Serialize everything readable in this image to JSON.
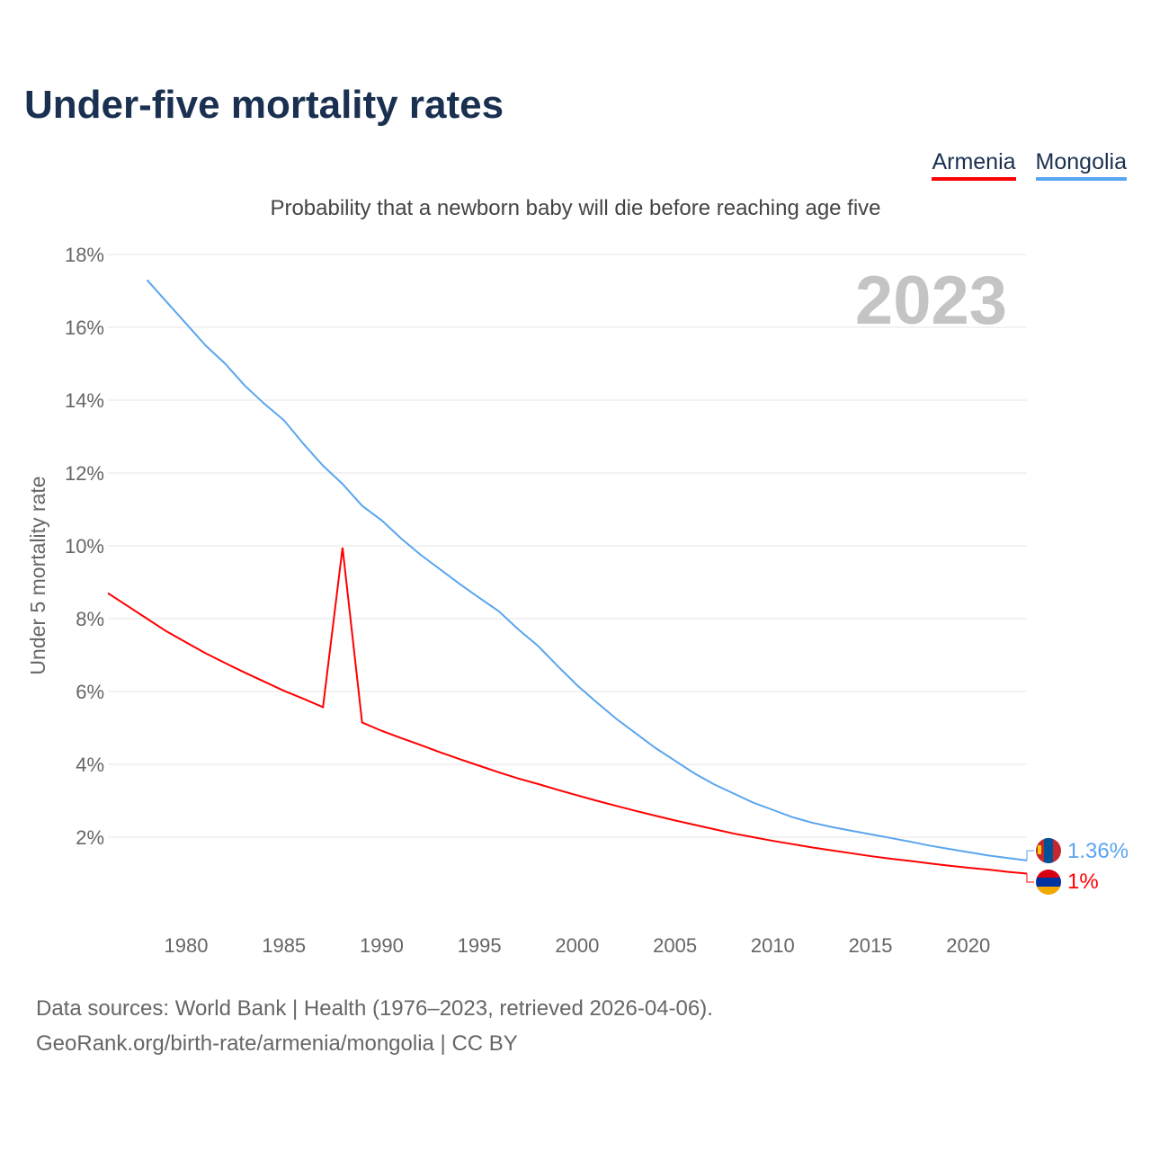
{
  "title": "Under-five mortality rates",
  "legend": [
    {
      "name": "Armenia",
      "color": "#ff0000"
    },
    {
      "name": "Mongolia",
      "color": "#5aa5ef"
    }
  ],
  "subtitle": "Probability that a newborn baby will die before reaching age five",
  "year_label": "2023",
  "end_labels": {
    "Mongolia": "1.36%",
    "Armenia": "1%"
  },
  "footer": [
    "Data sources: World Bank | Health (1976–2023, retrieved 2026-04-06).",
    "GeoRank.org/birth-rate/armenia/mongolia | CC BY"
  ],
  "chart_data": {
    "type": "line",
    "title": "Under-five mortality rates",
    "ylabel": "Under 5 mortality rate",
    "xlabel": "",
    "xlim": [
      1976,
      2023
    ],
    "ylim": [
      0,
      18
    ],
    "xticks": [
      1980,
      1985,
      1990,
      1995,
      2000,
      2005,
      2010,
      2015,
      2020
    ],
    "yticks": [
      "2%",
      "4%",
      "6%",
      "8%",
      "10%",
      "12%",
      "14%",
      "16%",
      "18%"
    ],
    "grid": true,
    "legend_position": "top-right",
    "series": [
      {
        "name": "Armenia",
        "color": "#ff0000",
        "start_year": 1976,
        "values": [
          8.7,
          8.35,
          8.0,
          7.65,
          7.35,
          7.05,
          6.78,
          6.52,
          6.27,
          6.02,
          5.8,
          5.57,
          9.95,
          5.15,
          4.92,
          4.72,
          4.53,
          4.33,
          4.14,
          3.96,
          3.78,
          3.61,
          3.46,
          3.3,
          3.15,
          3.0,
          2.86,
          2.72,
          2.59,
          2.46,
          2.34,
          2.22,
          2.1,
          2.0,
          1.9,
          1.81,
          1.72,
          1.64,
          1.56,
          1.48,
          1.41,
          1.35,
          1.28,
          1.22,
          1.16,
          1.11,
          1.05,
          1.0
        ]
      },
      {
        "name": "Mongolia",
        "color": "#5aa5ef",
        "start_year": 1978,
        "values": [
          17.3,
          16.7,
          16.1,
          15.5,
          15.0,
          14.4,
          13.9,
          13.45,
          12.8,
          12.2,
          11.7,
          11.1,
          10.7,
          10.2,
          9.75,
          9.35,
          8.95,
          8.57,
          8.2,
          7.7,
          7.25,
          6.7,
          6.17,
          5.7,
          5.25,
          4.85,
          4.45,
          4.1,
          3.75,
          3.45,
          3.2,
          2.95,
          2.75,
          2.55,
          2.4,
          2.28,
          2.18,
          2.08,
          1.98,
          1.88,
          1.77,
          1.68,
          1.59,
          1.5,
          1.43,
          1.36
        ]
      }
    ]
  }
}
